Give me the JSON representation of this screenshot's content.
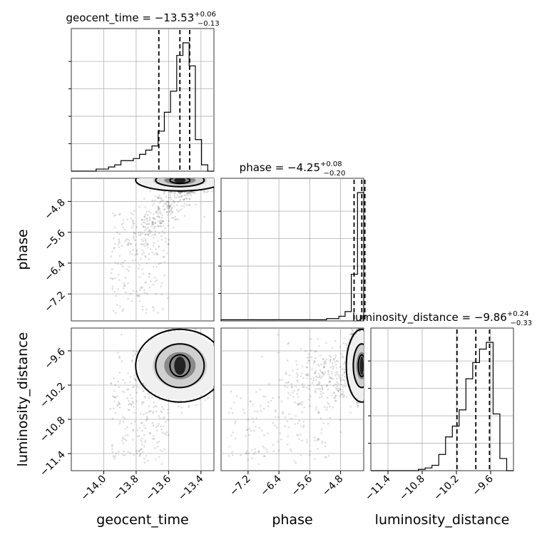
{
  "chart_data": {
    "type": "corner",
    "parameters": [
      "geocent_time",
      "phase",
      "luminosity_distance"
    ],
    "ranges": {
      "geocent_time": [
        -14.2,
        -13.32
      ],
      "phase": [
        -7.9,
        -4.2
      ],
      "luminosity_distance": [
        -11.7,
        -9.2
      ]
    },
    "ticks": {
      "geocent_time": [
        -14.0,
        -13.8,
        -13.6,
        -13.4
      ],
      "phase": [
        -7.2,
        -6.4,
        -5.6,
        -4.8
      ],
      "luminosity_distance": [
        -11.4,
        -10.8,
        -10.2,
        -9.6
      ]
    },
    "tick_labels": {
      "geocent_time": [
        "−14.0",
        "−13.8",
        "−13.6",
        "−13.4"
      ],
      "phase": [
        "−7.2",
        "−6.4",
        "−5.6",
        "−4.8"
      ],
      "luminosity_distance": [
        "−11.4",
        "−10.8",
        "−10.2",
        "−9.6"
      ]
    },
    "titles": {
      "geocent_time": {
        "prefix": "geocent_time = ",
        "value": "−13.53",
        "plus": "+0.06",
        "minus": "−0.13"
      },
      "phase": {
        "prefix": "phase = ",
        "value": "−4.25",
        "plus": "+0.08",
        "minus": "−0.20"
      },
      "luminosity_distance": {
        "prefix": "luminosity_distance = ",
        "value": "−9.86",
        "plus": "+0.24",
        "minus": "−0.33"
      }
    },
    "axis_labels": {
      "geocent_time": "geocent_time",
      "phase": "phase",
      "luminosity_distance": "luminosity_distance"
    },
    "quantiles": {
      "geocent_time": [
        -13.66,
        -13.53,
        -13.47
      ],
      "phase": [
        -4.45,
        -4.25,
        -4.17
      ],
      "luminosity_distance": [
        -10.19,
        -9.86,
        -9.62
      ]
    },
    "histograms": {
      "geocent_time": {
        "x_range": [
          -14.2,
          -13.32
        ],
        "counts": [
          0,
          0,
          0,
          0,
          1,
          1,
          2,
          3,
          5,
          5,
          6,
          8,
          10,
          12,
          19,
          28,
          38,
          55,
          61,
          50,
          15,
          3,
          0
        ]
      },
      "phase": {
        "x_range": [
          -7.9,
          -4.2
        ],
        "counts": [
          1,
          1,
          1,
          1,
          1,
          1,
          1,
          1,
          1,
          1,
          1,
          1,
          1,
          1,
          1,
          1,
          1,
          2,
          2,
          4,
          8,
          40,
          110
        ]
      },
      "luminosity_distance": {
        "x_range": [
          -11.7,
          -9.2
        ],
        "counts": [
          0,
          0,
          0,
          0,
          0,
          0,
          0,
          1,
          2,
          4,
          12,
          25,
          33,
          45,
          68,
          80,
          90,
          95,
          42,
          9,
          0
        ]
      }
    },
    "grid": true,
    "colors": {
      "line": "#000000",
      "points": "#000000",
      "grid": "#b0b0b0"
    }
  }
}
